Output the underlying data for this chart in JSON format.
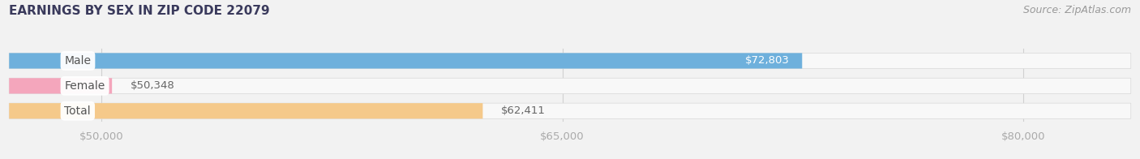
{
  "title": "EARNINGS BY SEX IN ZIP CODE 22079",
  "source": "Source: ZipAtlas.com",
  "categories": [
    "Male",
    "Female",
    "Total"
  ],
  "values": [
    72803,
    50348,
    62411
  ],
  "value_labels": [
    "$72,803",
    "$50,348",
    "$62,411"
  ],
  "bar_colors": [
    "#6eb0dc",
    "#f4a6bc",
    "#f5c98a"
  ],
  "label_inside": [
    true,
    false,
    false
  ],
  "xlim_min": 47000,
  "xlim_max": 83500,
  "xticks": [
    50000,
    65000,
    80000
  ],
  "xtick_labels": [
    "$50,000",
    "$65,000",
    "$80,000"
  ],
  "bar_height": 0.62,
  "background_color": "#f2f2f2",
  "bar_bg_color": "#e0e0e0",
  "track_bg_color": "#f8f8f8",
  "label_fontsize": 9.5,
  "title_fontsize": 11,
  "title_color": "#3a3a5c",
  "source_fontsize": 9,
  "source_color": "#999999",
  "tick_color": "#aaaaaa",
  "value_label_inside_color": "white",
  "value_label_outside_color": "#666666",
  "cat_label_color": "#555555",
  "grid_color": "#d0d0d0",
  "cat_label_fontsize": 10
}
